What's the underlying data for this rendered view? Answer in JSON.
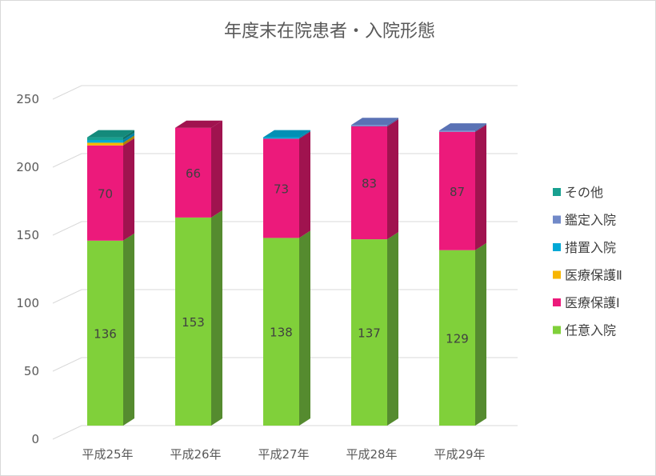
{
  "chart_data": {
    "type": "bar",
    "stacked": true,
    "three_d": true,
    "title": "年度末在院患者・入院形態",
    "categories": [
      "平成25年",
      "平成26年",
      "平成27年",
      "平成28年",
      "平成29年"
    ],
    "yticks": [
      "0",
      "50",
      "100",
      "150",
      "200",
      "250"
    ],
    "ylim": [
      0,
      250
    ],
    "grid": true,
    "legend_position": "right",
    "series": [
      {
        "name": "任意入院",
        "color": "#80d03a",
        "side": "#558b2f",
        "top": "#a5e06a",
        "values": [
          136,
          153,
          138,
          137,
          129
        ],
        "labels": [
          "136",
          "153",
          "138",
          "137",
          "129"
        ]
      },
      {
        "name": "医療保護Ⅰ",
        "color": "#ec1a7b",
        "side": "#a0134f",
        "top": "#a0134f",
        "values": [
          70,
          66,
          73,
          83,
          87
        ],
        "labels": [
          "70",
          "66",
          "73",
          "83",
          "87"
        ]
      },
      {
        "name": "医療保護Ⅱ",
        "color": "#f7b500",
        "side": "#b08000",
        "top": "#d69e00",
        "values": [
          2,
          0,
          0,
          0,
          0
        ],
        "labels": []
      },
      {
        "name": "措置入院",
        "color": "#00a8d6",
        "side": "#0084a8",
        "top": "#0090b5",
        "values": [
          2,
          0,
          1,
          0,
          0
        ],
        "labels": []
      },
      {
        "name": "鑑定入院",
        "color": "#7189c8",
        "side": "#4e63a0",
        "top": "#5a72b5",
        "values": [
          0,
          0,
          0,
          1,
          1
        ],
        "labels": []
      },
      {
        "name": "その他",
        "color": "#18a090",
        "side": "#0e7468",
        "top": "#148a7b",
        "values": [
          2,
          0,
          0,
          0,
          0
        ],
        "labels": []
      }
    ]
  }
}
